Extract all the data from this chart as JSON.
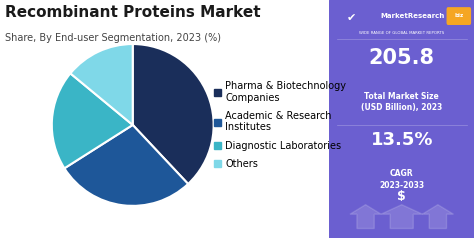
{
  "title": "Recombinant Proteins Market",
  "subtitle": "Share, By End-user Segmentation, 2023 (%)",
  "pie_labels": [
    "Pharma & Biotechnology\nCompanies",
    "Academic & Research\nInstitutes",
    "Diagnostic Laboratories",
    "Others"
  ],
  "pie_values": [
    38,
    28,
    20,
    14
  ],
  "pie_colors": [
    "#1a2e5a",
    "#1e5799",
    "#3ab5c6",
    "#7fd8e8"
  ],
  "pie_startangle": 90,
  "right_bg_color": "#6B5FD0",
  "right_text_color": "#ffffff",
  "market_size_value": "205.8",
  "market_size_label": "Total Market Size\n(USD Billion), 2023",
  "cagr_value": "13.5%",
  "cagr_label": "CAGR\n2023-2033",
  "brand_name": "MarketResearch",
  "brand_suffix": "biz",
  "bg_color": "#ffffff",
  "title_fontsize": 11,
  "subtitle_fontsize": 7,
  "legend_fontsize": 7
}
